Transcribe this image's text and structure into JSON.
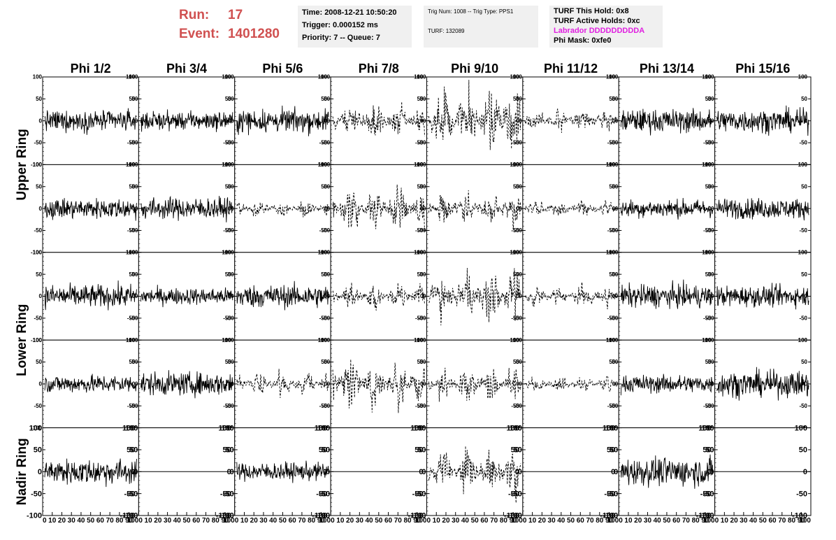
{
  "run": {
    "label": "Run:",
    "value": "17"
  },
  "event": {
    "label": "Event:",
    "value": "1401280"
  },
  "info_time": {
    "time": "Time: 2008-12-21 10:50:20",
    "trigger": "Trigger: 0.000152 ms",
    "priority": "Priority: 7 -- Queue: 7"
  },
  "info_trig": {
    "trig": "Trig Num: 1008 -- Trig Type: PPS1",
    "turf": "TURF: 132089"
  },
  "info_turf": {
    "this_hold": "TURF This Hold: 0x8",
    "active_holds": "TURF Active Holds: 0xc",
    "labrador": "Labrador DDDDDDDDDA",
    "phi_mask": "Phi Mask: 0xfe0"
  },
  "colors": {
    "header_red": "#d05050",
    "magenta": "#e020e0",
    "box_bg": "#f0f0f0",
    "trace": "#000000"
  },
  "chart_data": {
    "type": "line",
    "columns": [
      "Phi 1/2",
      "Phi 3/4",
      "Phi 5/6",
      "Phi 7/8",
      "Phi 9/10",
      "Phi 11/12",
      "Phi 13/14",
      "Phi 15/16"
    ],
    "row_groups": [
      {
        "label": "Upper Ring",
        "rows": [
          0,
          1
        ]
      },
      {
        "label": "Lower Ring",
        "rows": [
          2,
          3
        ]
      },
      {
        "label": "Nadir Ring",
        "rows": [
          4
        ]
      }
    ],
    "xlim": [
      0,
      100
    ],
    "ylim": [
      -100,
      100
    ],
    "x_ticks": [
      "0",
      "10",
      "20",
      "30",
      "40",
      "50",
      "60",
      "70",
      "80",
      "90",
      "100"
    ],
    "y_ticks": [
      "100",
      "50",
      "0",
      "-50",
      "-100"
    ],
    "panels": [
      [
        {
          "style": "solid",
          "amp": 16,
          "empty": false
        },
        {
          "style": "solid",
          "amp": 14,
          "empty": false
        },
        {
          "style": "solid",
          "amp": 18,
          "empty": false
        },
        {
          "style": "dashed",
          "amp": 28,
          "empty": false
        },
        {
          "style": "dashed",
          "amp": 55,
          "empty": false
        },
        {
          "style": "dashed",
          "amp": 18,
          "empty": false
        },
        {
          "style": "solid",
          "amp": 18,
          "empty": false
        },
        {
          "style": "solid",
          "amp": 18,
          "empty": false
        }
      ],
      [
        {
          "style": "solid",
          "amp": 16,
          "empty": false
        },
        {
          "style": "solid",
          "amp": 17,
          "empty": false
        },
        {
          "style": "dashed",
          "amp": 14,
          "empty": false
        },
        {
          "style": "dashed",
          "amp": 35,
          "empty": false
        },
        {
          "style": "dashed",
          "amp": 28,
          "empty": false
        },
        {
          "style": "dashed",
          "amp": 14,
          "empty": false
        },
        {
          "style": "solid",
          "amp": 14,
          "empty": false
        },
        {
          "style": "solid",
          "amp": 16,
          "empty": false
        }
      ],
      [
        {
          "style": "solid",
          "amp": 18,
          "empty": false
        },
        {
          "style": "solid",
          "amp": 13,
          "empty": false
        },
        {
          "style": "solid",
          "amp": 18,
          "empty": false
        },
        {
          "style": "dashed",
          "amp": 22,
          "empty": false
        },
        {
          "style": "dashed",
          "amp": 45,
          "empty": false
        },
        {
          "style": "dashed",
          "amp": 18,
          "empty": false
        },
        {
          "style": "solid",
          "amp": 18,
          "empty": false
        },
        {
          "style": "solid",
          "amp": 16,
          "empty": false
        }
      ],
      [
        {
          "style": "solid",
          "amp": 14,
          "empty": false
        },
        {
          "style": "solid",
          "amp": 18,
          "empty": false
        },
        {
          "style": "dashed",
          "amp": 20,
          "empty": false
        },
        {
          "style": "dashed",
          "amp": 40,
          "empty": false
        },
        {
          "style": "dashed",
          "amp": 28,
          "empty": false
        },
        {
          "style": "dashed",
          "amp": 12,
          "empty": false
        },
        {
          "style": "solid",
          "amp": 14,
          "empty": false
        },
        {
          "style": "solid",
          "amp": 20,
          "empty": false
        }
      ],
      [
        {
          "style": "solid",
          "amp": 20,
          "empty": false
        },
        {
          "style": "solid",
          "amp": 0,
          "empty": true
        },
        {
          "style": "solid",
          "amp": 14,
          "empty": false
        },
        {
          "style": "solid",
          "amp": 0,
          "empty": true
        },
        {
          "style": "dashed",
          "amp": 38,
          "empty": false
        },
        {
          "style": "solid",
          "amp": 0,
          "empty": true
        },
        {
          "style": "solid",
          "amp": 22,
          "empty": false
        },
        {
          "style": "solid",
          "amp": 0,
          "empty": true
        }
      ]
    ]
  }
}
